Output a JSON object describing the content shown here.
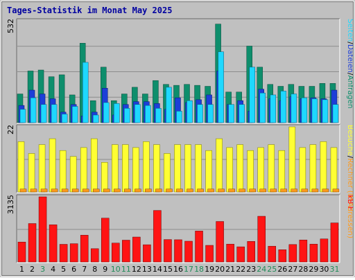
{
  "title": "Tages-Statistik im Monat May 2025",
  "colors": {
    "background": "#c0c0c0",
    "plot_bg": "#c0c0c0",
    "grid": "#8c8c8c",
    "title": "#0000a0",
    "hits": "#0e8e6c",
    "files": "#1c3fd8",
    "pages": "#1ed8ff",
    "visits": "#ffff33",
    "sites": "#ff9a1c",
    "kbytes": "#ff1414",
    "weekend_label": "#208a58",
    "weekday_label": "#000000"
  },
  "chart_data": [
    {
      "type": "bar",
      "name": "top",
      "ymax_label": "532",
      "legend_right": [
        {
          "text": "Anfragen",
          "color": "#0e8e6c"
        },
        {
          "text": "/",
          "color": "#000000"
        },
        {
          "text": "Dateien",
          "color": "#1c3fd8"
        },
        {
          "text": "/",
          "color": "#000000"
        },
        {
          "text": "Seiten",
          "color": "#1ed8ff"
        }
      ],
      "ymax": 532,
      "categories": [
        "1",
        "2",
        "3",
        "4",
        "5",
        "6",
        "7",
        "8",
        "9",
        "10",
        "11",
        "12",
        "13",
        "14",
        "15",
        "16",
        "17",
        "18",
        "19",
        "20",
        "21",
        "22",
        "23",
        "24",
        "25",
        "26",
        "27",
        "28",
        "29",
        "30",
        "31"
      ],
      "series": [
        {
          "name": "Anfragen",
          "values": [
            150,
            270,
            275,
            240,
            250,
            145,
            415,
            115,
            290,
            115,
            150,
            185,
            150,
            220,
            200,
            195,
            200,
            195,
            190,
            515,
            160,
            160,
            400,
            290,
            200,
            190,
            200,
            190,
            190,
            205,
            205
          ]
        },
        {
          "name": "Dateien",
          "values": [
            90,
            170,
            150,
            125,
            55,
            95,
            35,
            55,
            180,
            40,
            95,
            110,
            110,
            100,
            70,
            130,
            105,
            120,
            145,
            270,
            95,
            115,
            60,
            175,
            125,
            115,
            135,
            125,
            130,
            125,
            170
          ]
        },
        {
          "name": "Seiten",
          "values": [
            70,
            130,
            95,
            95,
            45,
            85,
            315,
            40,
            105,
            100,
            75,
            95,
            90,
            75,
            185,
            60,
            115,
            95,
            95,
            370,
            95,
            95,
            290,
            155,
            145,
            165,
            150,
            130,
            125,
            120,
            95
          ]
        }
      ],
      "weekend_indices": [
        2,
        9,
        10,
        16,
        17,
        23,
        24,
        30
      ]
    },
    {
      "type": "bar",
      "name": "middle",
      "ymax_label": "22",
      "legend_right": [
        {
          "text": "Rechner (IP-Adressen)",
          "color": "#ff9a1c"
        },
        {
          "text": "/",
          "color": "#000000"
        },
        {
          "text": "Besuche",
          "color": "#ffff33"
        }
      ],
      "ymax": 22,
      "series": [
        {
          "name": "Besuche",
          "values": [
            17,
            13,
            16,
            18,
            14,
            12,
            15,
            18,
            10,
            16,
            16,
            15,
            17,
            16,
            13,
            16,
            16,
            16,
            14,
            18,
            15,
            16,
            14,
            15,
            16,
            14,
            22,
            15,
            16,
            17,
            15
          ]
        },
        {
          "name": "Rechner",
          "values": [
            1,
            1,
            1,
            1,
            1,
            1,
            1,
            1,
            1,
            1,
            1,
            1,
            1,
            1,
            1,
            1,
            1,
            1,
            1,
            1,
            1,
            1,
            1,
            1,
            1,
            1,
            1,
            1,
            1,
            1,
            1
          ]
        }
      ]
    },
    {
      "type": "bar",
      "name": "bottom",
      "ymax_label": "3135",
      "legend_right": [
        {
          "text": "kB F",
          "color": "#ff1414"
        }
      ],
      "ymax": 3135,
      "series": [
        {
          "name": "kB F",
          "values": [
            960,
            1850,
            3135,
            1790,
            850,
            880,
            1290,
            640,
            2110,
            910,
            1050,
            1200,
            830,
            2480,
            1080,
            1070,
            1000,
            1490,
            800,
            1950,
            860,
            730,
            990,
            2200,
            760,
            590,
            840,
            1060,
            860,
            1110,
            1880
          ]
        }
      ]
    }
  ]
}
